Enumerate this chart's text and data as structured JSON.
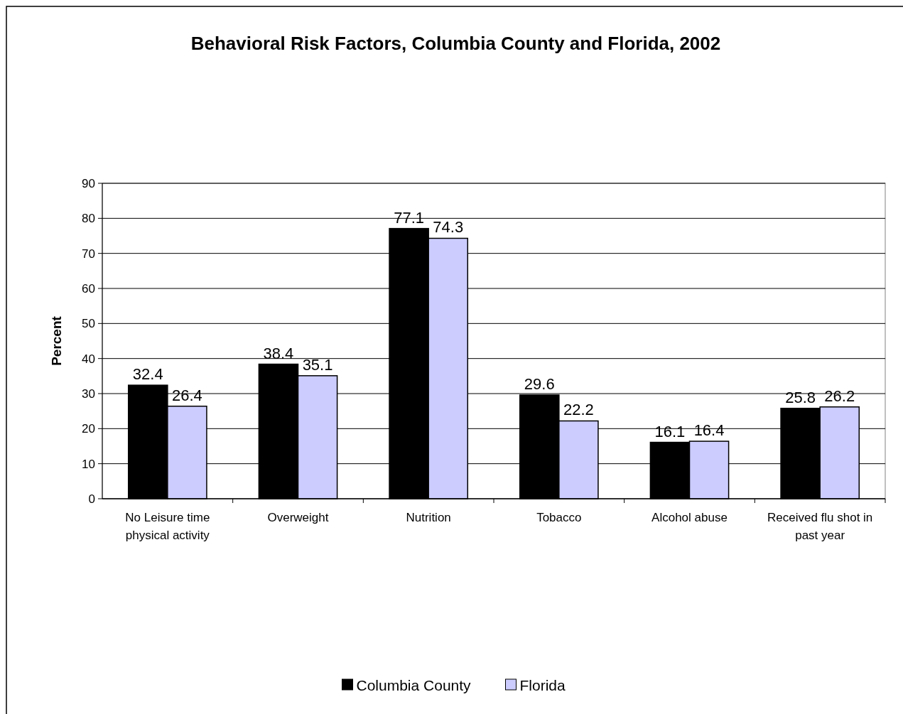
{
  "chart_data": {
    "type": "bar",
    "title": "Behavioral Risk Factors, Columbia County and Florida, 2002",
    "ylabel": "Percent",
    "categories": [
      "No Leisure time physical activity",
      "Overweight",
      "Nutrition",
      "Tobacco",
      "Alcohol abuse",
      "Received flu shot in past year"
    ],
    "series": [
      {
        "name": "Columbia County",
        "color": "#000000",
        "values": [
          32.4,
          38.4,
          77.1,
          29.6,
          16.1,
          25.8
        ]
      },
      {
        "name": "Florida",
        "color": "#ccccff",
        "values": [
          26.4,
          35.1,
          74.3,
          22.2,
          16.4,
          26.2
        ]
      }
    ],
    "ylim": [
      0,
      90
    ],
    "yticks": [
      0,
      10,
      20,
      30,
      40,
      50,
      60,
      70,
      80,
      90
    ],
    "grid": "y",
    "legend": "bottom",
    "data_labels": true
  }
}
